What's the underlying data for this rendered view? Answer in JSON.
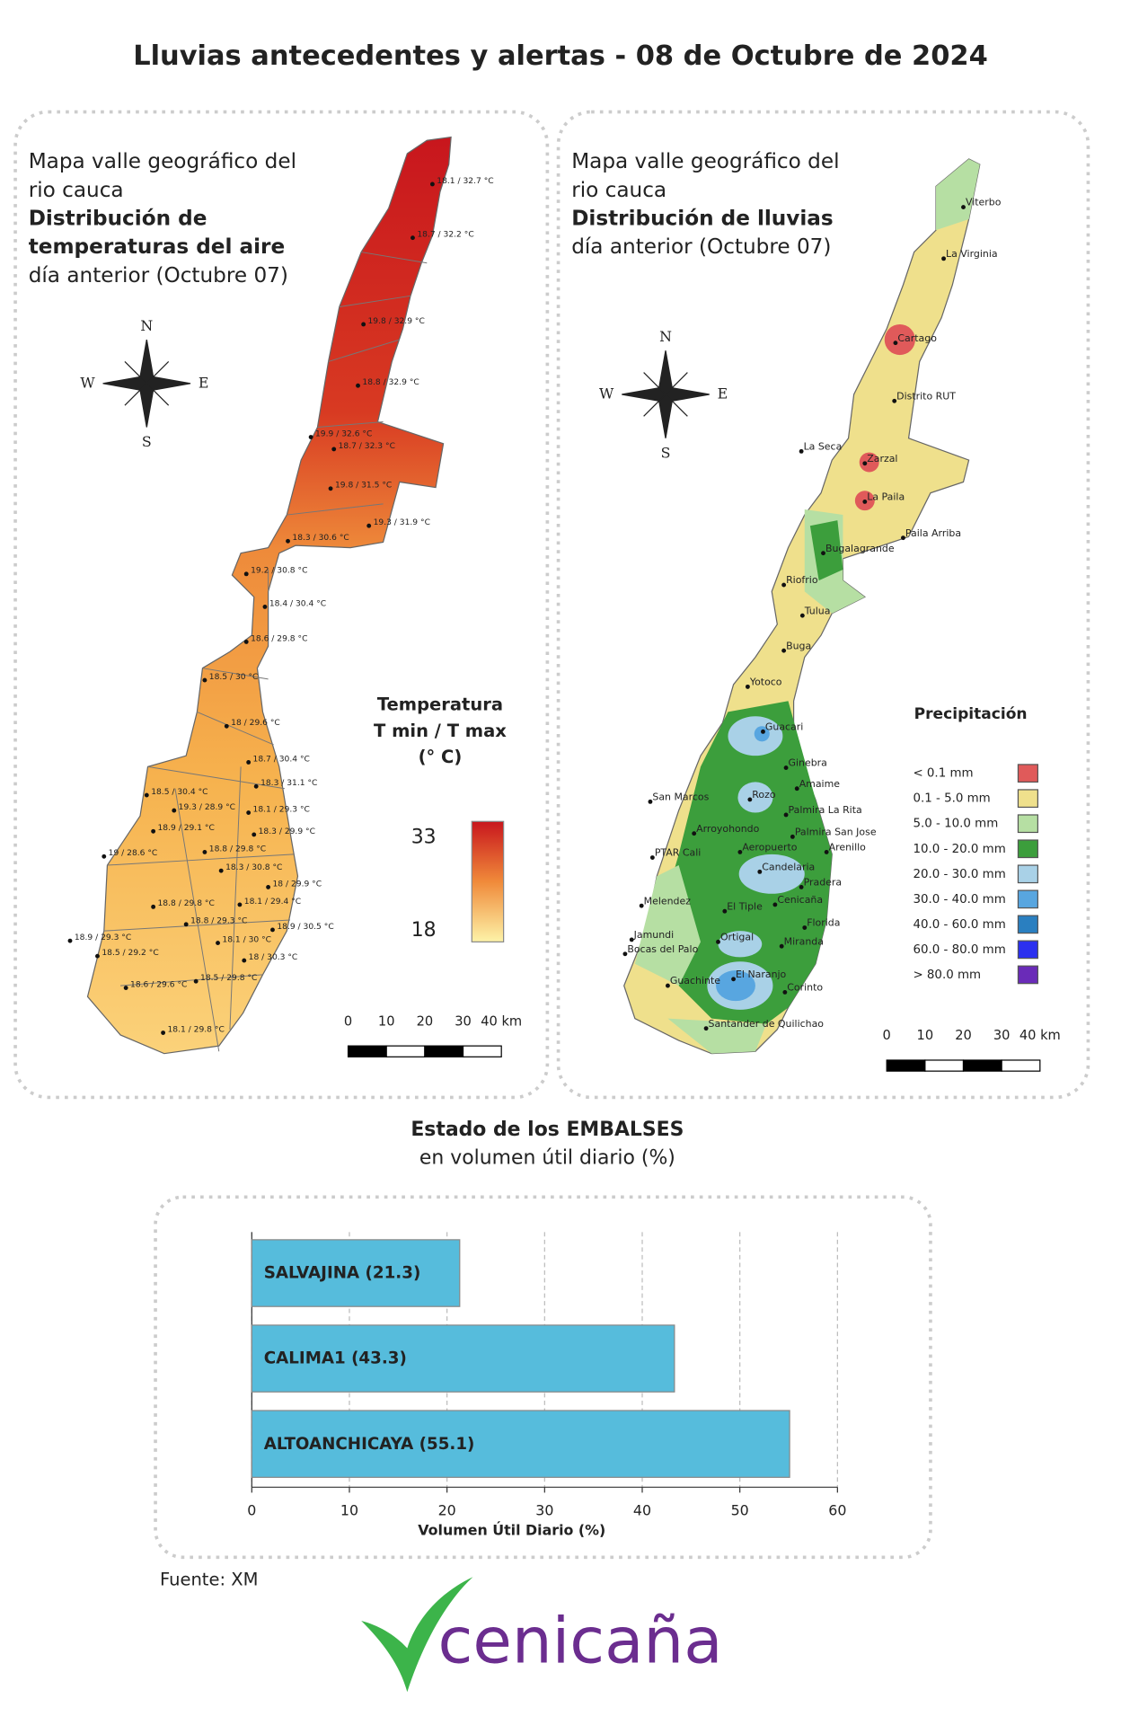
{
  "title": "Lluvias antecedentes y alertas - 08 de Octubre de 2024",
  "temperature_map": {
    "title_lines": [
      "Mapa valle geográfico del",
      "rio cauca"
    ],
    "bold_lines": [
      "Distribución de",
      "temperaturas del aire"
    ],
    "subtitle": "día anterior (Octubre 07)",
    "compass": [
      "N",
      "E",
      "S",
      "W"
    ],
    "stations": [
      "18.1 / 32.7 °C",
      "18.7 / 32.2 °C",
      "19.8 / 32.9 °C",
      "18.8 / 32.9 °C",
      "19.9 / 32.6 °C",
      "18.7 / 32.3 °C",
      "19.8 / 31.5 °C",
      "19.3 / 31.9 °C",
      "18.3 / 30.6 °C",
      "19.2 / 30.8 °C",
      "18.4 / 30.4 °C",
      "18.6 / 29.8 °C",
      "18.5 / 30 °C",
      "18 / 29.6 °C",
      "18.7 / 30.4 °C",
      "18.3 / 31.1 °C",
      "18.5 / 30.4 °C",
      "19.3 / 28.9 °C",
      "18.1 / 29.3 °C",
      "18.9 / 29.1 °C",
      "18.3 / 29.9 °C",
      "19 / 28.6 °C",
      "18.8 / 29.8 °C",
      "18.3 / 30.8 °C",
      "18 / 29.9 °C",
      "18.8 / 29.8 °C",
      "18.1 / 29.4 °C",
      "18.8 / 29.3 °C",
      "18.9 / 30.5 °C",
      "18.9 / 29.3 °C",
      "18.1 / 30 °C",
      "18.5 / 29.2 °C",
      "18 / 30.3 °C",
      "18.6 / 29.6 °C",
      "18.5 / 29.8 °C",
      "18.1 / 29.8 °C"
    ],
    "legend_title": [
      "Temperatura",
      "T min / T max",
      "(° C)"
    ],
    "legend_ticks": [
      33,
      18
    ],
    "scale": [
      0,
      10,
      20,
      30,
      "40 km"
    ]
  },
  "rain_map": {
    "title_lines": [
      "Mapa valle geográfico del",
      "rio cauca"
    ],
    "bold_lines": [
      "Distribución de lluvias"
    ],
    "subtitle": "día anterior (Octubre 07)",
    "compass": [
      "N",
      "E",
      "S",
      "W"
    ],
    "stations": [
      "Viterbo",
      "La Virginia",
      "Cartago",
      "Distrito RUT",
      "La Seca",
      "Zarzal",
      "La Paila",
      "Paila Arriba",
      "Bugalagrande",
      "Riofrio",
      "Tulua",
      "Buga",
      "Yotoco",
      "Guacari",
      "Ginebra",
      "Amaime",
      "San Marcos",
      "Rozo",
      "Palmira La Rita",
      "Arroyohondo",
      "Palmira San Jose",
      "Aeropuerto",
      "Arenillo",
      "PTAR Cali",
      "Candelaria",
      "Pradera",
      "Cenicaña",
      "Melendez",
      "El Tiple",
      "Florida",
      "Jamundi",
      "Bocas del Palo",
      "Ortigal",
      "Miranda",
      "Guachinte",
      "El Naranjo",
      "Corinto",
      "Santander de Quilichao"
    ],
    "legend_title": "Precipitación",
    "legend": [
      {
        "label": "< 0.1 mm",
        "color": "#e05a5a"
      },
      {
        "label": "0.1 - 5.0 mm",
        "color": "#efe08c"
      },
      {
        "label": "5.0 - 10.0 mm",
        "color": "#b6dfa3"
      },
      {
        "label": "10.0 - 20.0 mm",
        "color": "#3c9e3c"
      },
      {
        "label": "20.0 - 30.0 mm",
        "color": "#a9d1e7"
      },
      {
        "label": "30.0 - 40.0 mm",
        "color": "#58a6e0"
      },
      {
        "label": "40.0 - 60.0 mm",
        "color": "#2a7fc0"
      },
      {
        "label": "60.0 - 80.0 mm",
        "color": "#2b30ef"
      },
      {
        "label": "> 80.0 mm",
        "color": "#6a2bb8"
      }
    ],
    "scale": [
      0,
      10,
      20,
      30,
      "40 km"
    ]
  },
  "chart_data": {
    "type": "hbar",
    "title": "Estado de los EMBALSES",
    "subtitle": "en volumen útil diario (%)",
    "values": [
      21.3,
      43.3,
      55.1
    ],
    "value_labels": [
      "SALVAJINA (21.3)",
      "CALIMA1 (43.3)",
      "ALTOANCHICAYA (55.1)"
    ],
    "color": "#56bcdc",
    "xlim": [
      0,
      60
    ],
    "xticks": [
      0,
      10,
      20,
      30,
      40,
      50,
      60
    ],
    "grid": true,
    "xlabel": "Volumen Útil Diario (%)"
  },
  "source": "Fuente: XM",
  "logo": "cenicaña"
}
